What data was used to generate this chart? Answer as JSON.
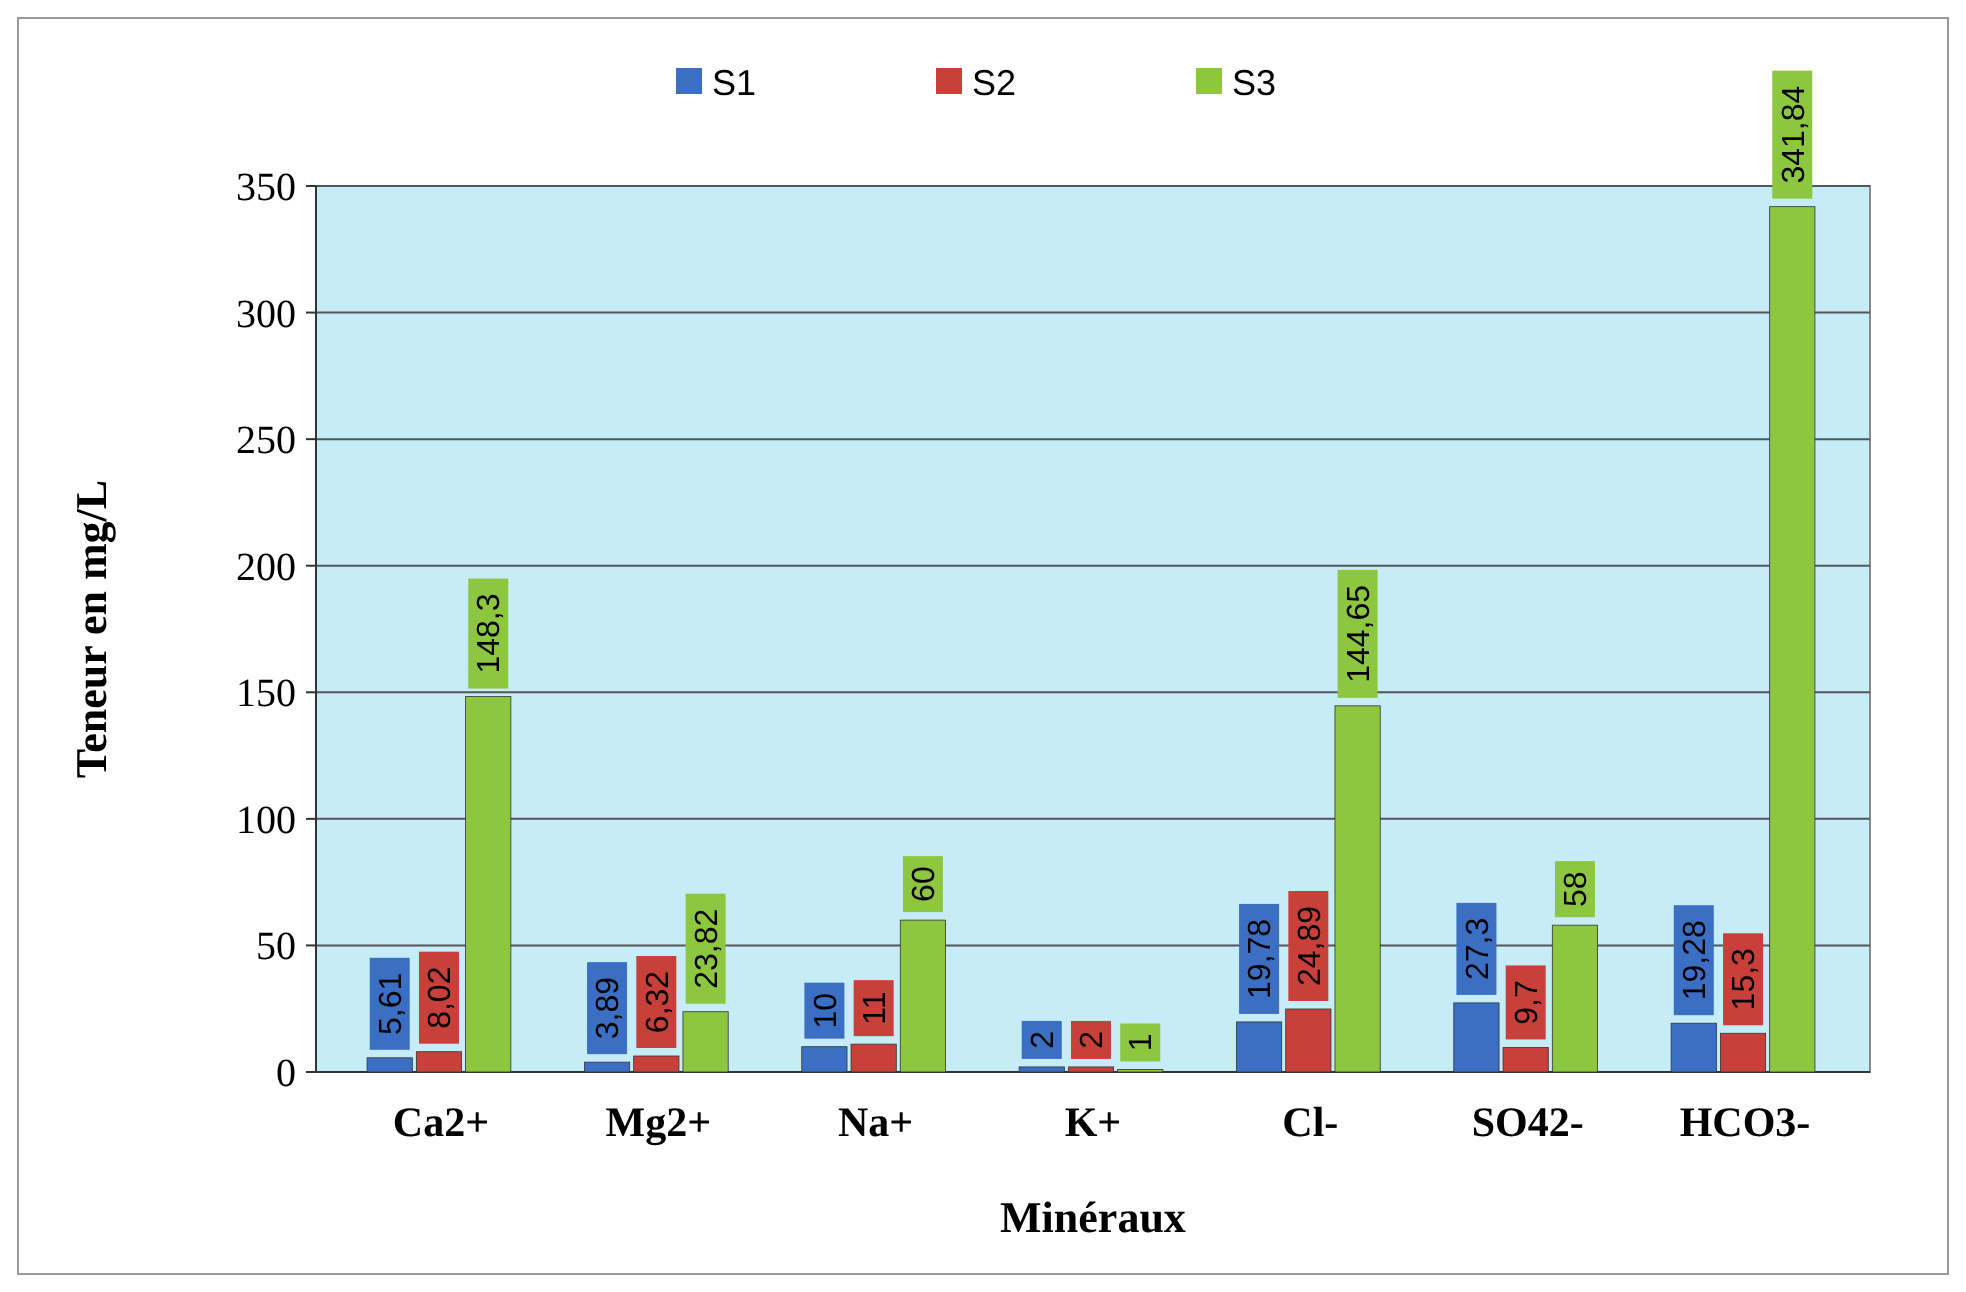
{
  "chart_data": {
    "type": "bar",
    "xlabel": "Minéraux",
    "ylabel": "Teneur en mg/L",
    "categories": [
      "Ca2+",
      "Mg2+",
      "Na+",
      "K+",
      "Cl-",
      "SO42-",
      "HCO3-"
    ],
    "series": [
      {
        "name": "S1",
        "color": "#3a6fc4",
        "values": [
          5.61,
          3.89,
          10,
          2,
          19.78,
          27.3,
          19.28
        ],
        "value_labels": [
          "5,61",
          "3,89",
          "10",
          "2",
          "19,78",
          "27,3",
          "19,28"
        ]
      },
      {
        "name": "S2",
        "color": "#c9403a",
        "values": [
          8.02,
          6.32,
          11,
          2,
          24.89,
          9.7,
          15.3
        ],
        "value_labels": [
          "8,02",
          "6,32",
          "11",
          "2",
          "24,89",
          "9,7",
          "15,3"
        ]
      },
      {
        "name": "S3",
        "color": "#8dc63f",
        "values": [
          148.3,
          23.82,
          60,
          1,
          144.65,
          58,
          341.84
        ],
        "value_labels": [
          "148,3",
          "23,82",
          "60",
          "1",
          "144,65",
          "58",
          "341,84"
        ]
      }
    ],
    "ylim": [
      0,
      350
    ],
    "yticks": [
      0,
      50,
      100,
      150,
      200,
      250,
      300,
      350
    ],
    "grid": "y",
    "legend": "top"
  }
}
